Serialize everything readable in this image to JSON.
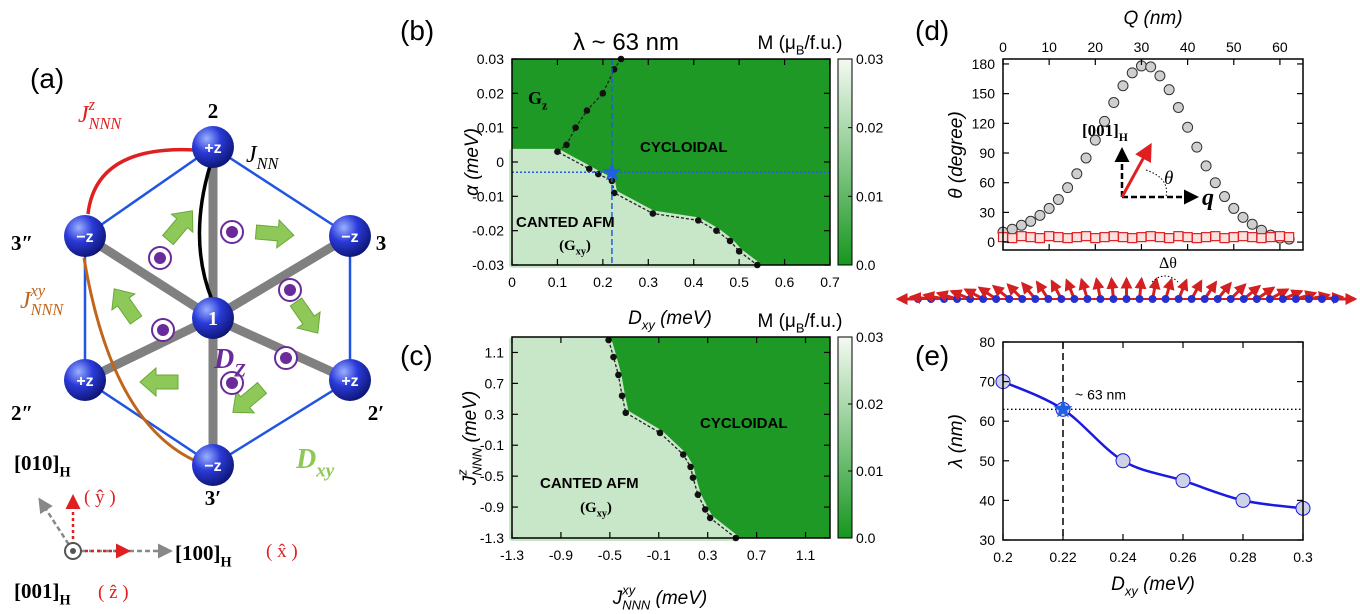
{
  "diagram": {
    "panel_label": "(a)",
    "atoms": [
      {
        "label": "1"
      },
      {
        "label": "2",
        "spin": "+z"
      },
      {
        "label": "3",
        "spin": "−z"
      },
      {
        "label": "2′",
        "spin": "+z"
      },
      {
        "label": "3′",
        "spin": "−z"
      },
      {
        "label": "2″",
        "spin": "+z"
      },
      {
        "label": "3″",
        "spin": "−z"
      }
    ],
    "couplings": {
      "j_nnn_z": {
        "base": "J",
        "sub": "NNN",
        "sup": "z"
      },
      "j_nn": {
        "base": "J",
        "sub": "NN"
      },
      "j_nnn_xy": {
        "base": "J",
        "sub": "NNN",
        "sup": "xy"
      },
      "d_z": {
        "base": "D",
        "sub": "Z"
      },
      "d_xy": {
        "base": "D",
        "sub": "xy"
      }
    },
    "axes": {
      "y_dir": {
        "base": "[010]",
        "sub": "H"
      },
      "y_unit": "( ŷ )",
      "x_dir": {
        "base": "[100]",
        "sub": "H"
      },
      "x_unit": "( x̂ )",
      "z_dir": {
        "base": "[001]",
        "sub": "H"
      },
      "z_unit": "( ẑ )"
    }
  },
  "chart_data": [
    {
      "type": "heatmap",
      "panel_label": "(b)",
      "title": "λ ~ 63 nm",
      "colorbar_label": {
        "base": "M (μ",
        "sub": "B",
        "rest": "/f.u.)"
      },
      "xlabel": {
        "base": "D",
        "sub": "xy",
        "rest": " (meV)"
      },
      "ylabel": "α (meV)",
      "xlim": [
        0,
        0.7
      ],
      "xticks": [
        0,
        0.1,
        0.2,
        0.3,
        0.4,
        0.5,
        0.6,
        0.7
      ],
      "ylim": [
        -0.03,
        0.03
      ],
      "yticks": [
        -0.03,
        -0.02,
        -0.01,
        0,
        0.01,
        0.02,
        0.03
      ],
      "clim": [
        0,
        0.03
      ],
      "cticks": [
        {
          "value": 0,
          "label": "0.0"
        },
        0.01,
        0.02,
        0.03
      ],
      "colormap": [
        "#17961f",
        "#f4faf2"
      ],
      "regions": [
        {
          "label": "CYCLOIDAL",
          "value": 0.001
        },
        {
          "label": "CANTED AFM",
          "sublabel": {
            "base": "(G",
            "sub": "xy",
            "rest": ")"
          },
          "value": 0.024
        }
      ],
      "annotations": [
        {
          "base": "G",
          "sub": "z"
        }
      ],
      "boundary": {
        "x": [
          0.24,
          0.225,
          0.2,
          0.165,
          0.14,
          0.12,
          0.1,
          0.17,
          0.19,
          0.22,
          0.225,
          0.31,
          0.41,
          0.45,
          0.48,
          0.5,
          0.54
        ],
        "y": [
          0.03,
          0.027,
          0.02,
          0.015,
          0.01,
          0.005,
          0.003,
          -0.002,
          -0.0035,
          -0.0055,
          -0.009,
          -0.015,
          -0.017,
          -0.02,
          -0.023,
          -0.026,
          -0.03
        ]
      },
      "marker": {
        "x": 0.22,
        "y": -0.003,
        "color": "#1f5fe0"
      }
    },
    {
      "type": "heatmap",
      "panel_label": "(c)",
      "colorbar_label": {
        "base": "M (μ",
        "sub": "B",
        "rest": "/f.u.)"
      },
      "xlabel": {
        "base": "J",
        "sub": "NNN",
        "sup": "xy",
        "rest": " (meV)"
      },
      "ylabel": {
        "base": "J",
        "sub": "NNN",
        "sup": "z",
        "rest": " (meV)"
      },
      "xlim": [
        -1.3,
        1.3
      ],
      "xticks": [
        -1.3,
        -0.9,
        -0.5,
        -0.1,
        0.3,
        0.7,
        1.1
      ],
      "ylim": [
        -1.3,
        1.3
      ],
      "yticks": [
        -1.3,
        -0.9,
        -0.5,
        -0.1,
        0.3,
        0.7,
        1.1
      ],
      "clim": [
        0,
        0.03
      ],
      "cticks": [
        {
          "value": 0,
          "label": "0.0"
        },
        0.01,
        0.02,
        0.03
      ],
      "colormap": [
        "#17961f",
        "#f4faf2"
      ],
      "regions": [
        {
          "label": "CYCLOIDAL",
          "value": 0.001
        },
        {
          "label": "CANTED AFM",
          "sublabel": {
            "base": "(G",
            "sub": "xy",
            "rest": ")"
          },
          "value": 0.024
        }
      ],
      "boundary": {
        "x": [
          -0.51,
          -0.47,
          -0.43,
          -0.4,
          -0.37,
          -0.09,
          0.1,
          0.16,
          0.18,
          0.22,
          0.28,
          0.32,
          0.53
        ],
        "y": [
          1.26,
          1.04,
          0.81,
          0.54,
          0.32,
          0.06,
          -0.22,
          -0.38,
          -0.52,
          -0.74,
          -0.93,
          -1.04,
          -1.3
        ]
      }
    },
    {
      "type": "scatter",
      "panel_label": "(d)",
      "xlabel": {
        "base": "Q",
        "rest": " (nm)"
      },
      "ylabel": "θ (degree)",
      "xlim": [
        0,
        65
      ],
      "xticks": [
        0,
        10,
        20,
        30,
        40,
        50,
        60
      ],
      "ylim": [
        -8,
        185
      ],
      "yticks": [
        0,
        30,
        60,
        90,
        120,
        150,
        180
      ],
      "x": [
        0,
        2,
        4,
        6,
        8,
        10,
        12,
        14,
        16,
        18,
        20,
        22,
        24,
        26,
        28,
        30,
        32,
        34,
        36,
        38,
        40,
        42,
        44,
        46,
        48,
        50,
        52,
        54,
        56,
        58,
        60,
        62
      ],
      "series": [
        {
          "color": "#888888",
          "values": [
            10,
            13,
            17,
            21,
            27,
            34,
            43,
            55,
            69,
            85,
            103,
            122,
            141,
            158,
            171,
            178,
            177,
            168,
            154,
            136,
            116,
            96,
            77,
            60,
            46,
            34,
            25,
            18,
            12,
            7,
            4,
            3
          ]
        },
        {
          "color": "#e02020",
          "values": [
            5,
            4,
            6,
            5,
            4,
            6,
            5,
            4,
            5,
            6,
            4,
            5,
            6,
            5,
            4,
            5,
            6,
            5,
            4,
            6,
            5,
            4,
            5,
            6,
            4,
            5,
            6,
            5,
            4,
            5,
            6,
            5
          ]
        }
      ],
      "inset": {
        "axis": {
          "base": "[001]",
          "sub": "H"
        },
        "angle": "θ",
        "wavevector": "q"
      },
      "chain_label": "Δθ"
    },
    {
      "type": "line",
      "panel_label": "(e)",
      "xlabel": {
        "base": "D",
        "sub": "xy",
        "rest": " (meV)"
      },
      "ylabel": "λ (nm)",
      "xlim": [
        0.2,
        0.3
      ],
      "xticks": [
        0.2,
        0.22,
        0.24,
        0.26,
        0.28,
        0.3
      ],
      "ylim": [
        30,
        80
      ],
      "yticks": [
        30,
        40,
        50,
        60,
        70,
        80
      ],
      "x": [
        0.2,
        0.22,
        0.24,
        0.26,
        0.28,
        0.3
      ],
      "values": [
        70,
        63,
        50,
        45,
        40,
        38
      ],
      "color": "#1a1ae0",
      "reference": {
        "x": 0.22,
        "y": 63,
        "label": "~ 63 nm"
      }
    }
  ]
}
